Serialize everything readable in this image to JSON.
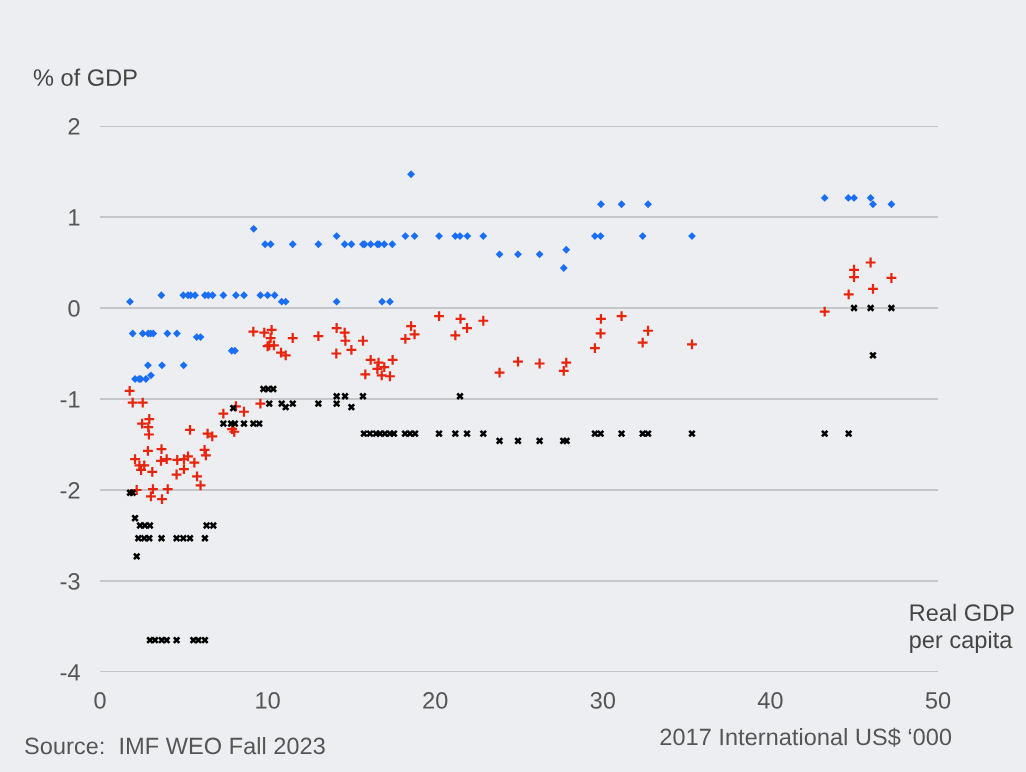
{
  "chart_data": {
    "type": "scatter",
    "ylabel": "% of GDP",
    "xlabel": "Real GDP\nper capita",
    "annotations": [
      "Source:  IMF WEO Fall 2023",
      "2017 International US$ ‘000"
    ],
    "xlim": [
      0,
      50
    ],
    "xticks": [
      0,
      10,
      20,
      30,
      40,
      50
    ],
    "ylim": [
      -4,
      2
    ],
    "yticks": [
      -4,
      -3,
      -2,
      -1,
      0,
      1,
      2
    ],
    "grid": "y",
    "series": [
      {
        "color": "#1a6ef5",
        "marker": "diamond",
        "x": [
          9.17,
          9.85,
          10.18,
          1.79,
          3.66,
          4.97,
          5.25,
          5.41,
          5.67,
          6.26,
          6.46,
          6.72,
          7.36,
          8.11,
          8.59,
          9.57,
          10.0,
          10.42,
          1.95,
          2.55,
          2.88,
          3.02,
          3.18,
          4.02,
          4.59,
          5.77,
          6.0,
          7.86,
          8.05,
          2.86,
          3.7,
          4.99,
          3.04,
          2.09,
          2.33,
          2.43,
          2.74,
          18.56,
          11.5,
          13.03,
          14.12,
          14.6,
          15.0,
          15.69,
          15.79,
          16.15,
          16.55,
          16.65,
          16.96,
          17.44,
          18.22,
          18.77,
          20.23,
          21.2,
          21.48,
          21.92,
          22.87,
          10.84,
          11.08,
          14.12,
          16.83,
          17.3,
          23.84,
          24.94,
          26.23,
          27.82,
          27.67,
          29.53,
          29.87,
          29.89,
          31.12,
          32.7,
          32.38,
          35.32,
          43.24,
          44.65,
          44.99,
          45.98,
          46.12,
          47.22
        ],
        "values": [
          0.87,
          0.7,
          0.7,
          0.07,
          0.14,
          0.14,
          0.14,
          0.14,
          0.14,
          0.14,
          0.14,
          0.14,
          0.14,
          0.14,
          0.14,
          0.14,
          0.14,
          0.14,
          -0.28,
          -0.28,
          -0.28,
          -0.28,
          -0.28,
          -0.28,
          -0.28,
          -0.32,
          -0.32,
          -0.47,
          -0.47,
          -0.63,
          -0.63,
          -0.63,
          -0.74,
          -0.78,
          -0.78,
          -0.78,
          -0.78,
          1.47,
          0.7,
          0.7,
          0.79,
          0.7,
          0.7,
          0.7,
          0.7,
          0.7,
          0.7,
          0.7,
          0.7,
          0.7,
          0.79,
          0.79,
          0.79,
          0.79,
          0.79,
          0.79,
          0.79,
          0.07,
          0.07,
          0.07,
          0.07,
          0.07,
          0.59,
          0.59,
          0.59,
          0.64,
          0.44,
          0.79,
          0.79,
          1.14,
          1.14,
          1.14,
          0.79,
          0.79,
          1.21,
          1.21,
          1.21,
          1.21,
          1.14,
          1.14
        ]
      },
      {
        "color": "#e8240c",
        "marker": "cross",
        "x": [
          9.15,
          9.8,
          10.24,
          10.18,
          10.0,
          10.1,
          10.38,
          1.77,
          1.95,
          2.55,
          2.94,
          2.51,
          2.88,
          2.92,
          5.37,
          7.36,
          8.11,
          8.59,
          9.57,
          7.88,
          8.01,
          6.42,
          6.7,
          6.24,
          6.32,
          2.86,
          3.67,
          2.09,
          2.35,
          2.64,
          2.45,
          3.12,
          3.64,
          3.98,
          4.61,
          5.01,
          5.25,
          5.63,
          5.01,
          4.57,
          5.79,
          6.0,
          2.19,
          3.16,
          4.04,
          3.04,
          3.7,
          10.8,
          11.08,
          11.5,
          13.03,
          14.12,
          14.6,
          14.64,
          14.1,
          15.0,
          15.69,
          16.15,
          15.83,
          16.62,
          16.96,
          16.55,
          16.81,
          17.3,
          17.46,
          18.22,
          18.56,
          18.77,
          20.23,
          21.2,
          21.51,
          21.9,
          22.87,
          23.84,
          24.94,
          26.23,
          27.82,
          27.67,
          29.53,
          29.87,
          29.89,
          31.12,
          32.38,
          32.7,
          35.32,
          43.24,
          44.67,
          44.99,
          44.99,
          45.98,
          46.12,
          47.22
        ],
        "values": [
          -0.26,
          -0.27,
          -0.24,
          -0.33,
          -0.42,
          -0.41,
          -0.41,
          -0.91,
          -1.04,
          -1.04,
          -1.22,
          -1.27,
          -1.31,
          -1.39,
          -1.34,
          -1.16,
          -1.08,
          -1.14,
          -1.05,
          -1.33,
          -1.36,
          -1.38,
          -1.41,
          -1.56,
          -1.62,
          -1.57,
          -1.55,
          -1.66,
          -1.73,
          -1.73,
          -1.78,
          -1.8,
          -1.68,
          -1.66,
          -1.67,
          -1.66,
          -1.63,
          -1.7,
          -1.77,
          -1.83,
          -1.85,
          -1.95,
          -2.0,
          -1.99,
          -1.99,
          -2.07,
          -2.1,
          -0.49,
          -0.52,
          -0.33,
          -0.31,
          -0.22,
          -0.27,
          -0.36,
          -0.5,
          -0.46,
          -0.36,
          -0.57,
          -0.73,
          -0.6,
          -0.65,
          -0.67,
          -0.74,
          -0.75,
          -0.57,
          -0.34,
          -0.2,
          -0.29,
          -0.09,
          -0.3,
          -0.12,
          -0.22,
          -0.14,
          -0.71,
          -0.59,
          -0.61,
          -0.6,
          -0.69,
          -0.44,
          -0.28,
          -0.12,
          -0.09,
          -0.38,
          -0.25,
          -0.4,
          -0.04,
          0.15,
          0.34,
          0.42,
          0.5,
          0.21,
          0.33
        ]
      },
      {
        "color": "#000000",
        "marker": "x",
        "x": [
          9.75,
          10.04,
          10.34,
          10.1,
          7.95,
          7.36,
          7.82,
          8.05,
          8.59,
          9.15,
          9.5,
          1.79,
          1.95,
          2.09,
          2.39,
          2.68,
          2.98,
          6.36,
          6.76,
          2.29,
          2.64,
          2.94,
          3.67,
          4.57,
          4.97,
          5.37,
          6.26,
          2.19,
          2.98,
          3.28,
          3.68,
          3.98,
          4.57,
          5.57,
          5.87,
          6.26,
          10.84,
          11.08,
          11.5,
          13.03,
          14.12,
          14.62,
          14.12,
          15.0,
          15.69,
          21.48,
          15.75,
          16.11,
          16.47,
          16.71,
          17.0,
          17.3,
          17.54,
          18.2,
          18.5,
          18.8,
          20.23,
          21.2,
          21.9,
          22.87,
          23.84,
          24.94,
          26.23,
          27.64,
          27.84,
          29.53,
          29.87,
          31.12,
          32.38,
          32.7,
          35.32,
          43.24,
          44.67,
          44.99,
          45.98,
          47.22,
          46.12
        ],
        "values": [
          -0.89,
          -0.89,
          -0.89,
          -1.05,
          -1.1,
          -1.27,
          -1.27,
          -1.27,
          -1.27,
          -1.27,
          -1.27,
          -2.03,
          -2.03,
          -2.31,
          -2.39,
          -2.39,
          -2.39,
          -2.39,
          -2.39,
          -2.53,
          -2.53,
          -2.53,
          -2.53,
          -2.53,
          -2.53,
          -2.53,
          -2.53,
          -2.73,
          -3.65,
          -3.65,
          -3.65,
          -3.65,
          -3.65,
          -3.65,
          -3.65,
          -3.65,
          -1.05,
          -1.09,
          -1.05,
          -1.05,
          -0.97,
          -0.97,
          -1.05,
          -1.09,
          -0.97,
          -0.97,
          -1.38,
          -1.38,
          -1.38,
          -1.38,
          -1.38,
          -1.38,
          -1.38,
          -1.38,
          -1.38,
          -1.38,
          -1.38,
          -1.38,
          -1.38,
          -1.38,
          -1.46,
          -1.46,
          -1.46,
          -1.46,
          -1.46,
          -1.38,
          -1.38,
          -1.38,
          -1.38,
          -1.38,
          -1.38,
          -1.38,
          -1.38,
          0.0,
          0.0,
          0.0,
          -0.52
        ]
      }
    ]
  }
}
